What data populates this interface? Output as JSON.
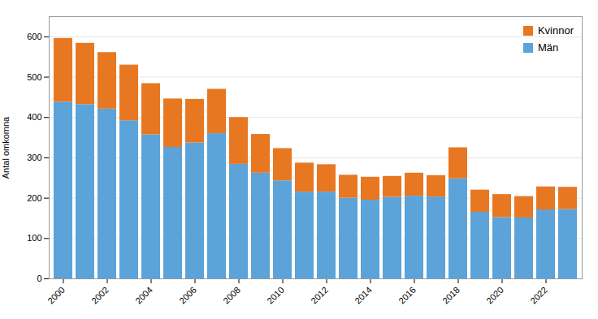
{
  "chart_data": {
    "type": "bar",
    "stacked": true,
    "categories": [
      "2000",
      null,
      "2002",
      null,
      "2004",
      null,
      "2006",
      null,
      "2008",
      null,
      "2010",
      null,
      "2012",
      null,
      "2014",
      null,
      "2016",
      null,
      "2018",
      null,
      "2020",
      null,
      "2022",
      null
    ],
    "series": [
      {
        "name": "Män",
        "color": "#5BA3D9",
        "values": [
          438,
          432,
          421,
          392,
          357,
          326,
          337,
          360,
          284,
          262,
          243,
          215,
          215,
          200,
          195,
          202,
          205,
          203,
          248,
          165,
          152,
          151,
          171,
          172
        ]
      },
      {
        "name": "Kvinnor",
        "color": "#E87722",
        "values": [
          158,
          152,
          140,
          138,
          127,
          120,
          108,
          110,
          116,
          96,
          80,
          72,
          68,
          57,
          57,
          52,
          57,
          53,
          77,
          55,
          57,
          53,
          57,
          55
        ]
      }
    ],
    "ylabel": "Antal omkomna",
    "ylim": [
      0,
      650
    ],
    "yticks": [
      0,
      100,
      200,
      300,
      400,
      500,
      600
    ],
    "grid": true,
    "legend": "upper right"
  }
}
